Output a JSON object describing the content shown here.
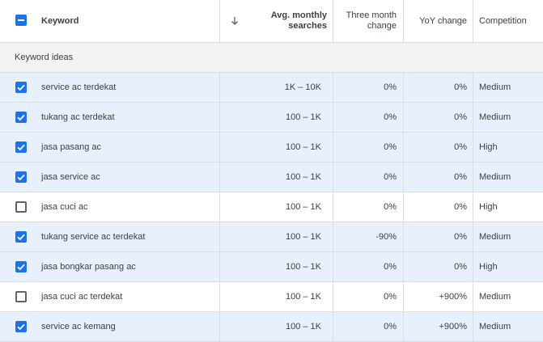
{
  "header": {
    "keyword": "Keyword",
    "avg_monthly_line1": "Avg. monthly",
    "avg_monthly_line2": "searches",
    "three_month_line1": "Three month",
    "three_month_line2": "change",
    "yoy": "YoY change",
    "competition": "Competition"
  },
  "section_label": "Keyword ideas",
  "colors": {
    "accent": "#1a73e8",
    "selected_row": "#e8f0fe"
  },
  "rows": [
    {
      "checked": true,
      "keyword": "service ac terdekat",
      "avg": "1K – 10K",
      "three": "0%",
      "yoy": "0%",
      "comp": "Medium"
    },
    {
      "checked": true,
      "keyword": "tukang ac terdekat",
      "avg": "100 – 1K",
      "three": "0%",
      "yoy": "0%",
      "comp": "Medium"
    },
    {
      "checked": true,
      "keyword": "jasa pasang ac",
      "avg": "100 – 1K",
      "three": "0%",
      "yoy": "0%",
      "comp": "High"
    },
    {
      "checked": true,
      "keyword": "jasa service ac",
      "avg": "100 – 1K",
      "three": "0%",
      "yoy": "0%",
      "comp": "Medium"
    },
    {
      "checked": false,
      "keyword": "jasa cuci ac",
      "avg": "100 – 1K",
      "three": "0%",
      "yoy": "0%",
      "comp": "High"
    },
    {
      "checked": true,
      "keyword": "tukang service ac terdekat",
      "avg": "100 – 1K",
      "three": "-90%",
      "yoy": "0%",
      "comp": "Medium"
    },
    {
      "checked": true,
      "keyword": "jasa bongkar pasang ac",
      "avg": "100 – 1K",
      "three": "0%",
      "yoy": "0%",
      "comp": "High"
    },
    {
      "checked": false,
      "keyword": "jasa cuci ac terdekat",
      "avg": "100 – 1K",
      "three": "0%",
      "yoy": "+900%",
      "comp": "Medium"
    },
    {
      "checked": true,
      "keyword": "service ac kemang",
      "avg": "100 – 1K",
      "three": "0%",
      "yoy": "+900%",
      "comp": "Medium"
    }
  ]
}
